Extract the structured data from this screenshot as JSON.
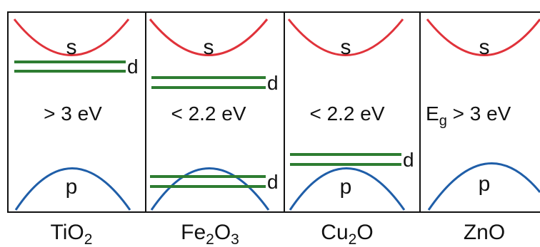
{
  "colors": {
    "conduction_band": "#e0323a",
    "valence_band": "#1f5ea8",
    "d_levels": "#2e7d32",
    "frame": "#111111"
  },
  "panels": [
    {
      "band_top": "s",
      "band_bottom": "p",
      "d_label": "d",
      "gap_text": "> 3 eV",
      "compound": [
        {
          "t": "TiO"
        },
        {
          "t": "2",
          "sub": true
        }
      ]
    },
    {
      "band_top": "s",
      "band_bottom": "p",
      "d_label_upper": "d",
      "d_label_lower": "d",
      "gap_text": "< 2.2 eV",
      "compound": [
        {
          "t": "Fe"
        },
        {
          "t": "2",
          "sub": true
        },
        {
          "t": "O"
        },
        {
          "t": "3",
          "sub": true
        }
      ]
    },
    {
      "band_top": "s",
      "band_bottom": "p",
      "d_label": "d",
      "gap_text": "< 2.2 eV",
      "compound": [
        {
          "t": "Cu"
        },
        {
          "t": "2",
          "sub": true
        },
        {
          "t": "O"
        }
      ]
    },
    {
      "band_top": "s",
      "band_bottom": "p",
      "gap_symbol": "E",
      "gap_symbol_sub": "g",
      "gap_text_rest": " > 3 eV",
      "compound": [
        {
          "t": "ZnO"
        }
      ]
    }
  ]
}
